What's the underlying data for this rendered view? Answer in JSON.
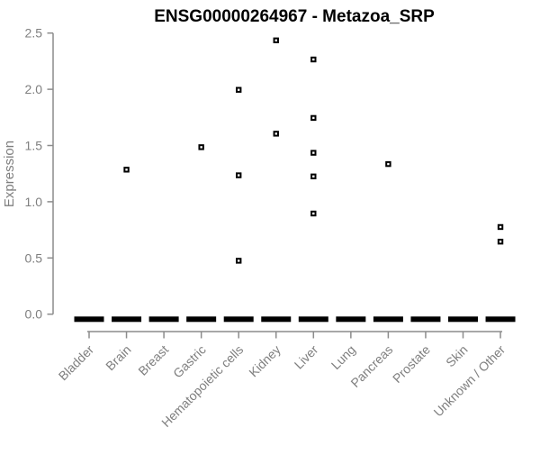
{
  "chart_data": {
    "type": "scatter",
    "title": "ENSG00000264967 - Metazoa_SRP",
    "ylabel": "Expression",
    "xlabel": "",
    "ylim": [
      0.0,
      2.5
    ],
    "yticks": [
      0.0,
      0.5,
      1.0,
      1.5,
      2.0,
      2.5
    ],
    "ytick_labels": [
      "0.0",
      "0.5",
      "1.0",
      "1.5",
      "2.0",
      "2.5"
    ],
    "categories": [
      "Bladder",
      "Brain",
      "Breast",
      "Gastric",
      "Hematopoietic cells",
      "Kidney",
      "Liver",
      "Lung",
      "Pancreas",
      "Prostate",
      "Skin",
      "Unknown / Other"
    ],
    "x_tick_label_rotation_deg": 45,
    "grid": false,
    "legend": false,
    "series": [
      {
        "name": "expression",
        "marker": "open-square",
        "color": "#000000",
        "points": [
          {
            "category": "Brain",
            "value": 1.33
          },
          {
            "category": "Gastric",
            "value": 1.53
          },
          {
            "category": "Hematopoietic cells",
            "value": 2.04
          },
          {
            "category": "Hematopoietic cells",
            "value": 1.28
          },
          {
            "category": "Hematopoietic cells",
            "value": 0.52
          },
          {
            "category": "Kidney",
            "value": 2.48
          },
          {
            "category": "Kidney",
            "value": 1.65
          },
          {
            "category": "Liver",
            "value": 2.31
          },
          {
            "category": "Liver",
            "value": 1.79
          },
          {
            "category": "Liver",
            "value": 1.48
          },
          {
            "category": "Liver",
            "value": 1.27
          },
          {
            "category": "Liver",
            "value": 0.94
          },
          {
            "category": "Pancreas",
            "value": 1.38
          },
          {
            "category": "Unknown / Other",
            "value": 0.82
          },
          {
            "category": "Unknown / Other",
            "value": 0.69
          }
        ]
      }
    ],
    "zero_clusters": {
      "value": 0.0,
      "categories": [
        "Bladder",
        "Brain",
        "Breast",
        "Gastric",
        "Hematopoietic cells",
        "Kidney",
        "Liver",
        "Lung",
        "Pancreas",
        "Prostate",
        "Skin",
        "Unknown / Other"
      ],
      "note": "thick black dash of many overlapping samples at expression 0 in every category"
    },
    "colors": {
      "points": "#000000",
      "axis": "#8c8c8c",
      "tick_labels": "#7f7f7f",
      "title": "#000000",
      "background": "#ffffff"
    }
  }
}
